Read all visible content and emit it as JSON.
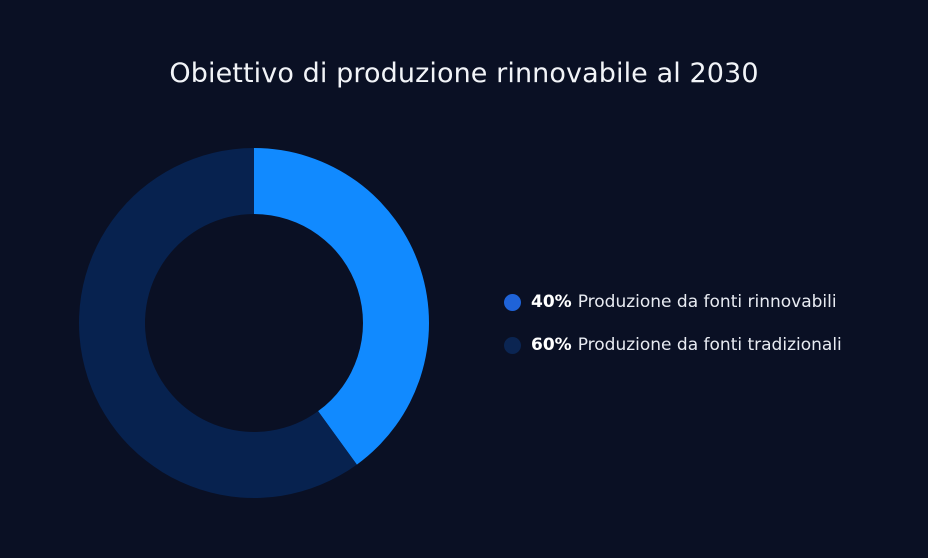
{
  "chart_data": {
    "type": "pie",
    "title": "Obiettivo di produzione rinnovabile al 2030",
    "donut": true,
    "legend_position": "right",
    "slices": [
      {
        "label": "Produzione da fonti rinnovabili",
        "value": 40,
        "value_label": "40%",
        "color": "#118aff",
        "legend_color": "#1f63d8"
      },
      {
        "label": "Produzione da fonti tradizionali",
        "value": 60,
        "value_label": "60%",
        "color": "#07224f",
        "legend_color": "#0b2552"
      }
    ]
  }
}
